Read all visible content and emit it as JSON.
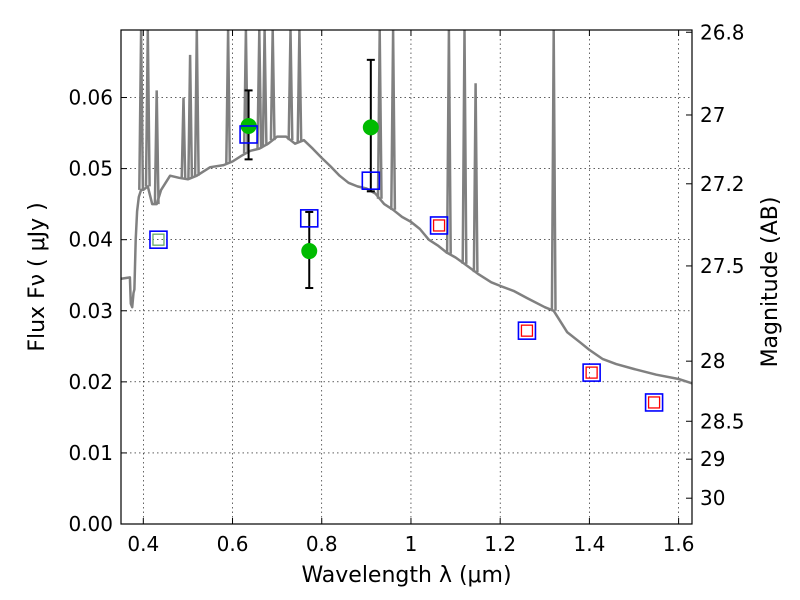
{
  "chart_data": {
    "type": "scatter",
    "xlabel": "Wavelength  λ (μm)",
    "ylabel": "Flux  F_ν  ( μJy )",
    "y2label": "Magnitude (AB)",
    "xlim": [
      0.35,
      1.63
    ],
    "ylim": [
      0.0,
      0.0695
    ],
    "xticks": [
      {
        "value": 0.4,
        "label": "0.4"
      },
      {
        "value": 0.6,
        "label": "0.6"
      },
      {
        "value": 0.8,
        "label": "0.8"
      },
      {
        "value": 1.0,
        "label": "1"
      },
      {
        "value": 1.2,
        "label": "1.2"
      },
      {
        "value": 1.4,
        "label": "1.4"
      },
      {
        "value": 1.6,
        "label": "1.6"
      }
    ],
    "yticks": [
      {
        "value": 0.0,
        "label": "0.00"
      },
      {
        "value": 0.01,
        "label": "0.01"
      },
      {
        "value": 0.02,
        "label": "0.02"
      },
      {
        "value": 0.03,
        "label": "0.03"
      },
      {
        "value": 0.04,
        "label": "0.04"
      },
      {
        "value": 0.05,
        "label": "0.05"
      },
      {
        "value": 0.06,
        "label": "0.06"
      }
    ],
    "y2ticks": [
      {
        "value": 26.8,
        "label": "26.8"
      },
      {
        "value": 27.0,
        "label": "27"
      },
      {
        "value": 27.2,
        "label": "27.2"
      },
      {
        "value": 27.5,
        "label": "27.5"
      },
      {
        "value": 28.0,
        "label": "28"
      },
      {
        "value": 28.5,
        "label": "28.5"
      },
      {
        "value": 29.0,
        "label": "29"
      },
      {
        "value": 30.0,
        "label": "30"
      }
    ],
    "grid": true,
    "series": [
      {
        "kind": "line",
        "color": "#808080",
        "x": [
          0.35,
          0.37,
          0.372,
          0.375,
          0.378,
          0.38,
          0.383,
          0.386,
          0.39,
          0.395,
          0.4,
          0.41,
          0.42,
          0.43,
          0.44,
          0.46,
          0.48,
          0.5,
          0.52,
          0.55,
          0.58,
          0.6,
          0.62,
          0.64,
          0.66,
          0.68,
          0.7,
          0.72,
          0.74,
          0.76,
          0.78,
          0.8,
          0.82,
          0.84,
          0.86,
          0.88,
          0.9,
          0.92,
          0.94,
          0.96,
          0.98,
          1.0,
          1.02,
          1.04,
          1.06,
          1.08,
          1.1,
          1.12,
          1.15,
          1.18,
          1.2,
          1.23,
          1.26,
          1.3,
          1.32,
          1.35,
          1.38,
          1.4,
          1.43,
          1.46,
          1.5,
          1.55,
          1.6,
          1.63
        ],
        "y": [
          0.0345,
          0.0347,
          0.031,
          0.0305,
          0.0325,
          0.033,
          0.04,
          0.044,
          0.046,
          0.047,
          0.047,
          0.0475,
          0.045,
          0.045,
          0.047,
          0.049,
          0.0487,
          0.0485,
          0.049,
          0.0502,
          0.0505,
          0.051,
          0.0518,
          0.0525,
          0.0528,
          0.0535,
          0.0545,
          0.0545,
          0.0535,
          0.054,
          0.0528,
          0.0515,
          0.0503,
          0.049,
          0.048,
          0.0475,
          0.0472,
          0.0465,
          0.045,
          0.0442,
          0.0432,
          0.0425,
          0.0415,
          0.04,
          0.0392,
          0.0382,
          0.0375,
          0.0366,
          0.0352,
          0.034,
          0.0335,
          0.0328,
          0.0318,
          0.0305,
          0.03,
          0.027,
          0.0255,
          0.0245,
          0.0232,
          0.0225,
          0.0218,
          0.021,
          0.0204,
          0.0198
        ]
      },
      {
        "kind": "spikes",
        "color": "#808080",
        "x": [
          0.395,
          0.41,
          0.43,
          0.49,
          0.505,
          0.52,
          0.59,
          0.63,
          0.66,
          0.672,
          0.69,
          0.73,
          0.75,
          0.93,
          0.96,
          1.085,
          1.12,
          1.145,
          1.32
        ],
        "y": [
          0.0695,
          0.0695,
          0.061,
          0.06,
          0.066,
          0.0695,
          0.0695,
          0.0695,
          0.0695,
          0.0695,
          0.0695,
          0.0695,
          0.0695,
          0.0695,
          0.0695,
          0.0695,
          0.0695,
          0.062,
          0.0695
        ]
      },
      {
        "kind": "errorbar",
        "color": "#00bb00",
        "x": [
          0.636,
          0.772,
          0.91
        ],
        "y": [
          0.056,
          0.0384,
          0.0558
        ],
        "yerr_low": [
          0.0047,
          0.0052,
          0.009
        ],
        "yerr_high": [
          0.005,
          0.0055,
          0.0095
        ]
      },
      {
        "kind": "square",
        "color": "#0000ff",
        "x": [
          0.434,
          0.636,
          0.772,
          0.91,
          1.063,
          1.26,
          1.405,
          1.545
        ],
        "y": [
          0.04,
          0.0548,
          0.043,
          0.0483,
          0.042,
          0.0272,
          0.0213,
          0.0171
        ]
      },
      {
        "kind": "square-small",
        "color": "#ff0000",
        "x": [
          1.063,
          1.26,
          1.405,
          1.545
        ],
        "y": [
          0.042,
          0.0272,
          0.0213,
          0.0171
        ]
      },
      {
        "kind": "square-small",
        "color": "#66aa66",
        "x": [
          0.434
        ],
        "y": [
          0.04
        ]
      }
    ]
  }
}
